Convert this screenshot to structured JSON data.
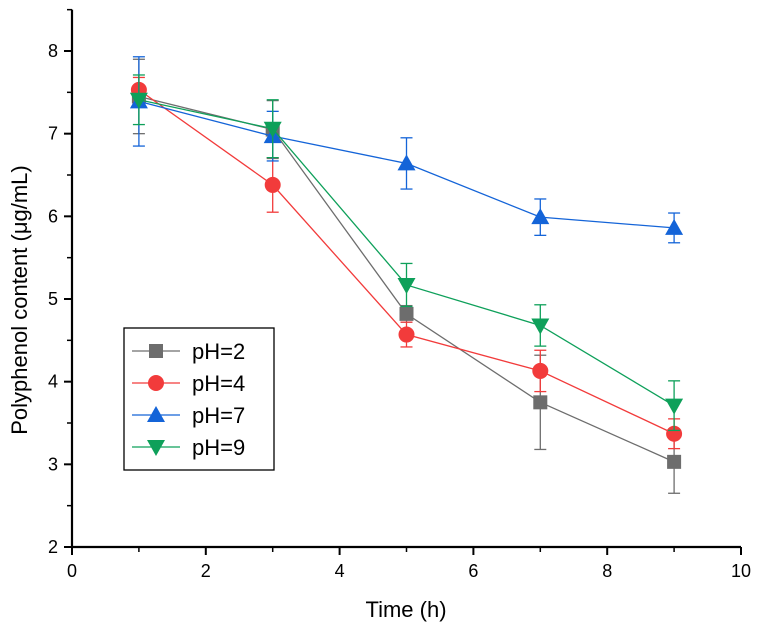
{
  "chart_data": {
    "type": "line",
    "title": "",
    "xlabel": "Time (h)",
    "ylabel": "Polyphenol content (μg/mL)",
    "xlim": [
      0,
      10
    ],
    "ylim": [
      2,
      8.5
    ],
    "xticks": [
      "0",
      "2",
      "4",
      "6",
      "8",
      "10"
    ],
    "yticks": [
      "2",
      "3",
      "4",
      "5",
      "6",
      "7",
      "8"
    ],
    "grid": false,
    "legend_position": "bottom-left",
    "x": [
      1,
      3,
      5,
      7,
      9
    ],
    "series": [
      {
        "name": "pH=2",
        "marker": "square",
        "color": "#6d6d6d",
        "values": [
          7.45,
          7.05,
          4.82,
          3.75,
          3.03
        ],
        "errors": [
          0.45,
          0.35,
          0.1,
          0.57,
          0.38
        ]
      },
      {
        "name": "pH=4",
        "marker": "circle",
        "color": "#f23b3b",
        "values": [
          7.53,
          6.38,
          4.57,
          4.13,
          3.37
        ],
        "errors": [
          0.15,
          0.33,
          0.15,
          0.25,
          0.18
        ]
      },
      {
        "name": "pH=7",
        "marker": "triangle-up",
        "color": "#1464d8",
        "values": [
          7.39,
          6.97,
          6.64,
          5.99,
          5.86
        ],
        "errors": [
          0.54,
          0.3,
          0.31,
          0.22,
          0.18
        ]
      },
      {
        "name": "pH=9",
        "marker": "triangle-down",
        "color": "#0ea05a",
        "values": [
          7.41,
          7.06,
          5.17,
          4.68,
          3.71
        ],
        "errors": [
          0.3,
          0.35,
          0.26,
          0.25,
          0.3
        ]
      }
    ]
  }
}
